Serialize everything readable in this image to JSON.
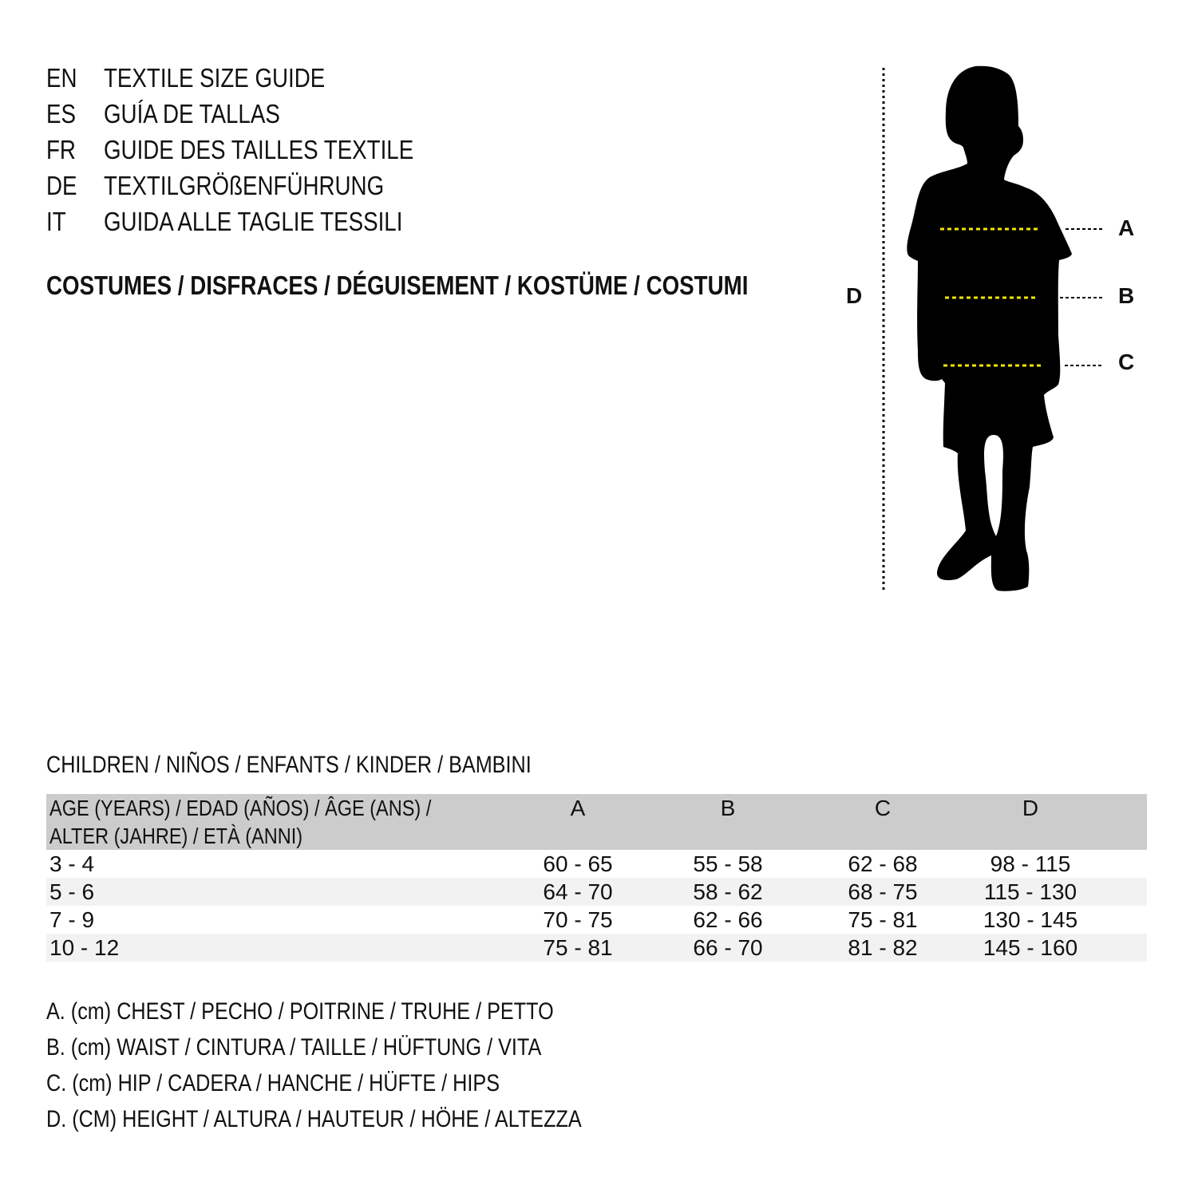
{
  "guide_titles": [
    {
      "code": "EN",
      "text": "TEXTILE SIZE GUIDE"
    },
    {
      "code": "ES",
      "text": "GUÍA DE TALLAS"
    },
    {
      "code": "FR",
      "text": "GUIDE DES TAILLES TEXTILE"
    },
    {
      "code": "DE",
      "text": "TEXTILGRÖßENFÜHRUNG"
    },
    {
      "code": "IT",
      "text": "GUIDA ALLE TAGLIE TESSILI"
    }
  ],
  "heading": "COSTUMES / DISFRACES / DÉGUISEMENT / KOSTÜME / COSTUMI",
  "figure": {
    "labels": {
      "A": "A",
      "B": "B",
      "C": "C",
      "D": "D"
    },
    "icon": "child-silhouette-icon",
    "measure_line_color": "#f5e600"
  },
  "table": {
    "title": "CHILDREN / NIÑOS / ENFANTS / KINDER / BAMBINI",
    "headers": {
      "age_line1": "AGE (YEARS) / EDAD (AÑOS) / ÂGE (ANS) /",
      "age_line2": "ALTER (JAHRE) / ETÀ (ANNI)",
      "A": "A",
      "B": "B",
      "C": "C",
      "D": "D"
    },
    "rows": [
      {
        "age": "3 - 4",
        "A": "60 - 65",
        "B": "55 - 58",
        "C": "62 - 68",
        "D": "98 - 115"
      },
      {
        "age": "5 - 6",
        "A": "64 - 70",
        "B": "58 - 62",
        "C": "68 - 75",
        "D": "115 - 130"
      },
      {
        "age": "7 - 9",
        "A": "70 - 75",
        "B": "62 - 66",
        "C": "75 - 81",
        "D": "130 - 145"
      },
      {
        "age": "10 - 12",
        "A": "75 - 81",
        "B": "66 - 70",
        "C": "81 - 82",
        "D": "145 - 160"
      }
    ]
  },
  "legend": [
    "A. (cm) CHEST / PECHO / POITRINE / TRUHE / PETTO",
    "B. (cm) WAIST / CINTURA / TAILLE / HÜFTUNG / VITA",
    "C. (cm) HIP / CADERA / HANCHE / HÜFTE / HIPS",
    "D. (CM) HEIGHT / ALTURA / HAUTEUR / HÖHE / ALTEZZA"
  ]
}
